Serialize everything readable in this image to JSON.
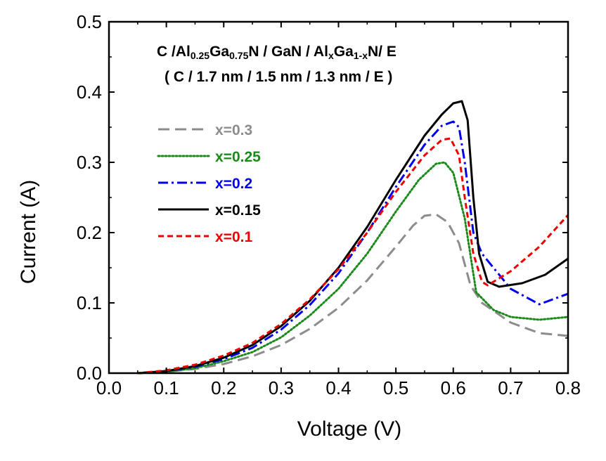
{
  "chart_data": {
    "type": "line",
    "xlabel": "Voltage (V)",
    "ylabel": "Current (A)",
    "xlim": [
      0.0,
      0.8
    ],
    "ylim": [
      0.0,
      0.5
    ],
    "x_ticks": [
      "0.0",
      "0.1",
      "0.2",
      "0.3",
      "0.4",
      "0.5",
      "0.6",
      "0.7",
      "0.8"
    ],
    "y_ticks": [
      "0.0",
      "0.1",
      "0.2",
      "0.3",
      "0.4",
      "0.5"
    ],
    "annotation": {
      "line1": {
        "a": "C /Al",
        "sub1": "0.25",
        "b": "Ga",
        "sub2": "0.75",
        "c": "N / GaN / Al",
        "sub3": "x",
        "d": "Ga",
        "sub4": "1-x",
        "e": "N/ E"
      },
      "line2": "( C / 1.7 nm / 1.5 nm / 1.3 nm / E )"
    },
    "legend_position": "upper-left",
    "series": [
      {
        "name": "x=0.3",
        "color": "#8c8c8c",
        "dash": "long-dash",
        "points": [
          [
            0.05,
            0.0
          ],
          [
            0.1,
            0.002
          ],
          [
            0.15,
            0.006
          ],
          [
            0.2,
            0.013
          ],
          [
            0.25,
            0.024
          ],
          [
            0.3,
            0.04
          ],
          [
            0.35,
            0.063
          ],
          [
            0.4,
            0.093
          ],
          [
            0.45,
            0.132
          ],
          [
            0.5,
            0.18
          ],
          [
            0.53,
            0.21
          ],
          [
            0.55,
            0.224
          ],
          [
            0.57,
            0.226
          ],
          [
            0.59,
            0.215
          ],
          [
            0.61,
            0.185
          ],
          [
            0.63,
            0.125
          ],
          [
            0.65,
            0.1
          ],
          [
            0.7,
            0.072
          ],
          [
            0.75,
            0.057
          ],
          [
            0.8,
            0.053
          ]
        ]
      },
      {
        "name": "x=0.25",
        "color": "#1a8a1a",
        "dash": "dotted",
        "points": [
          [
            0.05,
            0.0
          ],
          [
            0.1,
            0.002
          ],
          [
            0.15,
            0.007
          ],
          [
            0.2,
            0.017
          ],
          [
            0.25,
            0.03
          ],
          [
            0.3,
            0.051
          ],
          [
            0.35,
            0.082
          ],
          [
            0.4,
            0.12
          ],
          [
            0.45,
            0.17
          ],
          [
            0.5,
            0.23
          ],
          [
            0.54,
            0.275
          ],
          [
            0.57,
            0.298
          ],
          [
            0.585,
            0.3
          ],
          [
            0.6,
            0.285
          ],
          [
            0.62,
            0.22
          ],
          [
            0.64,
            0.115
          ],
          [
            0.67,
            0.09
          ],
          [
            0.7,
            0.08
          ],
          [
            0.75,
            0.076
          ],
          [
            0.8,
            0.08
          ]
        ]
      },
      {
        "name": "x=0.2",
        "color": "#0000ee",
        "dash": "dash-dot",
        "points": [
          [
            0.05,
            0.0
          ],
          [
            0.1,
            0.003
          ],
          [
            0.15,
            0.009
          ],
          [
            0.2,
            0.02
          ],
          [
            0.25,
            0.036
          ],
          [
            0.3,
            0.062
          ],
          [
            0.35,
            0.097
          ],
          [
            0.4,
            0.142
          ],
          [
            0.45,
            0.2
          ],
          [
            0.5,
            0.265
          ],
          [
            0.55,
            0.325
          ],
          [
            0.58,
            0.352
          ],
          [
            0.6,
            0.358
          ],
          [
            0.61,
            0.35
          ],
          [
            0.62,
            0.3
          ],
          [
            0.635,
            0.2
          ],
          [
            0.65,
            0.17
          ],
          [
            0.7,
            0.12
          ],
          [
            0.75,
            0.098
          ],
          [
            0.8,
            0.113
          ]
        ]
      },
      {
        "name": "x=0.15",
        "color": "#000000",
        "dash": "solid",
        "points": [
          [
            0.05,
            0.0
          ],
          [
            0.1,
            0.003
          ],
          [
            0.15,
            0.01
          ],
          [
            0.2,
            0.022
          ],
          [
            0.25,
            0.04
          ],
          [
            0.3,
            0.067
          ],
          [
            0.35,
            0.103
          ],
          [
            0.4,
            0.15
          ],
          [
            0.45,
            0.208
          ],
          [
            0.5,
            0.275
          ],
          [
            0.55,
            0.338
          ],
          [
            0.58,
            0.368
          ],
          [
            0.6,
            0.384
          ],
          [
            0.615,
            0.387
          ],
          [
            0.625,
            0.36
          ],
          [
            0.635,
            0.25
          ],
          [
            0.645,
            0.17
          ],
          [
            0.66,
            0.13
          ],
          [
            0.68,
            0.123
          ],
          [
            0.72,
            0.128
          ],
          [
            0.76,
            0.14
          ],
          [
            0.8,
            0.163
          ]
        ]
      },
      {
        "name": "x=0.1",
        "color": "#ee0000",
        "dash": "short-dash",
        "points": [
          [
            0.05,
            0.0
          ],
          [
            0.1,
            0.004
          ],
          [
            0.15,
            0.012
          ],
          [
            0.2,
            0.025
          ],
          [
            0.25,
            0.043
          ],
          [
            0.3,
            0.07
          ],
          [
            0.35,
            0.105
          ],
          [
            0.4,
            0.148
          ],
          [
            0.45,
            0.2
          ],
          [
            0.5,
            0.258
          ],
          [
            0.55,
            0.31
          ],
          [
            0.58,
            0.332
          ],
          [
            0.595,
            0.334
          ],
          [
            0.61,
            0.31
          ],
          [
            0.62,
            0.25
          ],
          [
            0.635,
            0.17
          ],
          [
            0.65,
            0.13
          ],
          [
            0.66,
            0.125
          ],
          [
            0.7,
            0.145
          ],
          [
            0.75,
            0.18
          ],
          [
            0.8,
            0.225
          ]
        ]
      }
    ]
  }
}
